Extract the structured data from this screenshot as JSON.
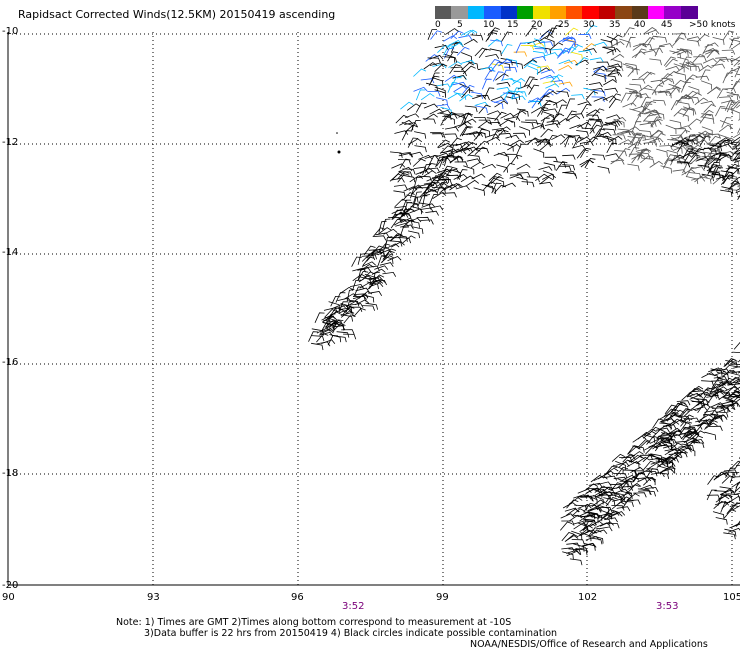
{
  "header": {
    "title": "Rapidsact Corrected Winds(12.5KM) 20150419 ascending"
  },
  "legend": {
    "segments": [
      {
        "color": "#5a5a5a"
      },
      {
        "color": "#999999"
      },
      {
        "color": "#00b8ff"
      },
      {
        "color": "#1a5cff"
      },
      {
        "color": "#0032c8"
      },
      {
        "color": "#00a000"
      },
      {
        "color": "#f0e000"
      },
      {
        "color": "#ffa000"
      },
      {
        "color": "#ff5000"
      },
      {
        "color": "#ff0000"
      },
      {
        "color": "#c00000"
      },
      {
        "color": "#8b4513"
      },
      {
        "color": "#5a3a1a"
      },
      {
        "color": "#ff00ff"
      },
      {
        "color": "#9600c8"
      },
      {
        "color": "#5a0096"
      }
    ],
    "labels": [
      "0",
      "5",
      "10",
      "15",
      "20",
      "25",
      "30",
      "35",
      "40",
      "45",
      ">50 knots"
    ]
  },
  "axes": {
    "lat_labels": [
      "-10",
      "-12",
      "-14",
      "-16",
      "-18",
      "-20"
    ],
    "lon_labels": [
      "90",
      "93",
      "96",
      "99",
      "102",
      "105"
    ]
  },
  "times": [
    "3:52",
    "3:53"
  ],
  "footer": {
    "note1": "Note: 1) Times are GMT 2)Times along bottom correspond to measurement at -10S",
    "note2": "3)Data buffer is 22 hrs from 20150419 4) Black circles indicate possible contamination",
    "credit": "NOAA/NESDIS/Office of Research and Applications"
  }
}
